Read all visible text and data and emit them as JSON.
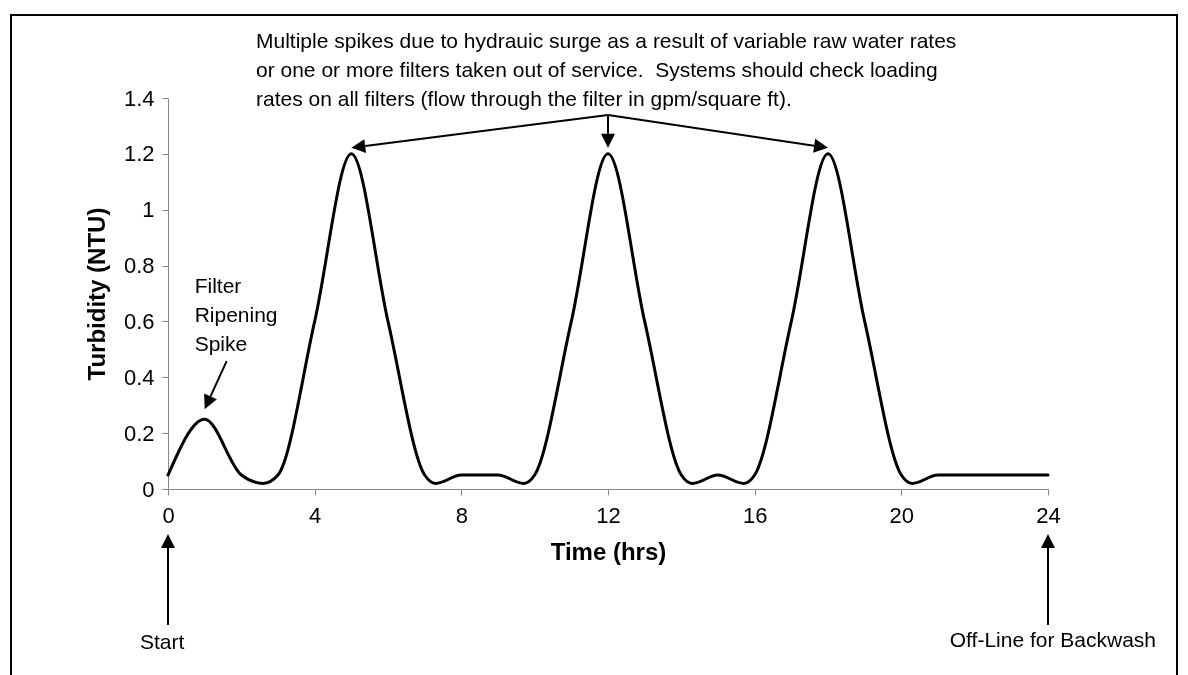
{
  "chart_data": {
    "type": "line",
    "xlabel": "Time (hrs)",
    "ylabel": "Turbidity (NTU)",
    "x": [
      0,
      1,
      2,
      2.6,
      3,
      4,
      5,
      6,
      7,
      7.3,
      8,
      9,
      9.7,
      10,
      11,
      12,
      13,
      14,
      14.3,
      15,
      15.7,
      16,
      17,
      18,
      19,
      20,
      20.3,
      21,
      24
    ],
    "series": [
      {
        "color": "#000000",
        "values": [
          0.05,
          0.25,
          0.05,
          0.02,
          0.05,
          0.6,
          1.2,
          0.6,
          0.05,
          0.02,
          0.05,
          0.05,
          0.02,
          0.05,
          0.6,
          1.2,
          0.6,
          0.05,
          0.02,
          0.05,
          0.02,
          0.05,
          0.6,
          1.2,
          0.6,
          0.05,
          0.02,
          0.05,
          0.05
        ]
      }
    ],
    "xlim": [
      0,
      24
    ],
    "xticks": [
      0,
      4,
      8,
      12,
      16,
      20,
      24
    ],
    "ylim": [
      0,
      1.4
    ],
    "yticks": [
      0,
      0.2,
      0.4,
      0.6,
      0.8,
      1,
      1.2,
      1.4
    ],
    "grid": false,
    "line_style": "solid",
    "annotations": [
      "Multiple spikes due to hydrauic surge as a result of variable raw water rates or one or more filters taken out of service.  Systems should check loading rates on all filters (flow through the filter in gpm/square ft).",
      "Filter Ripening Spike",
      "Start",
      "Off-Line for Backwash"
    ]
  }
}
